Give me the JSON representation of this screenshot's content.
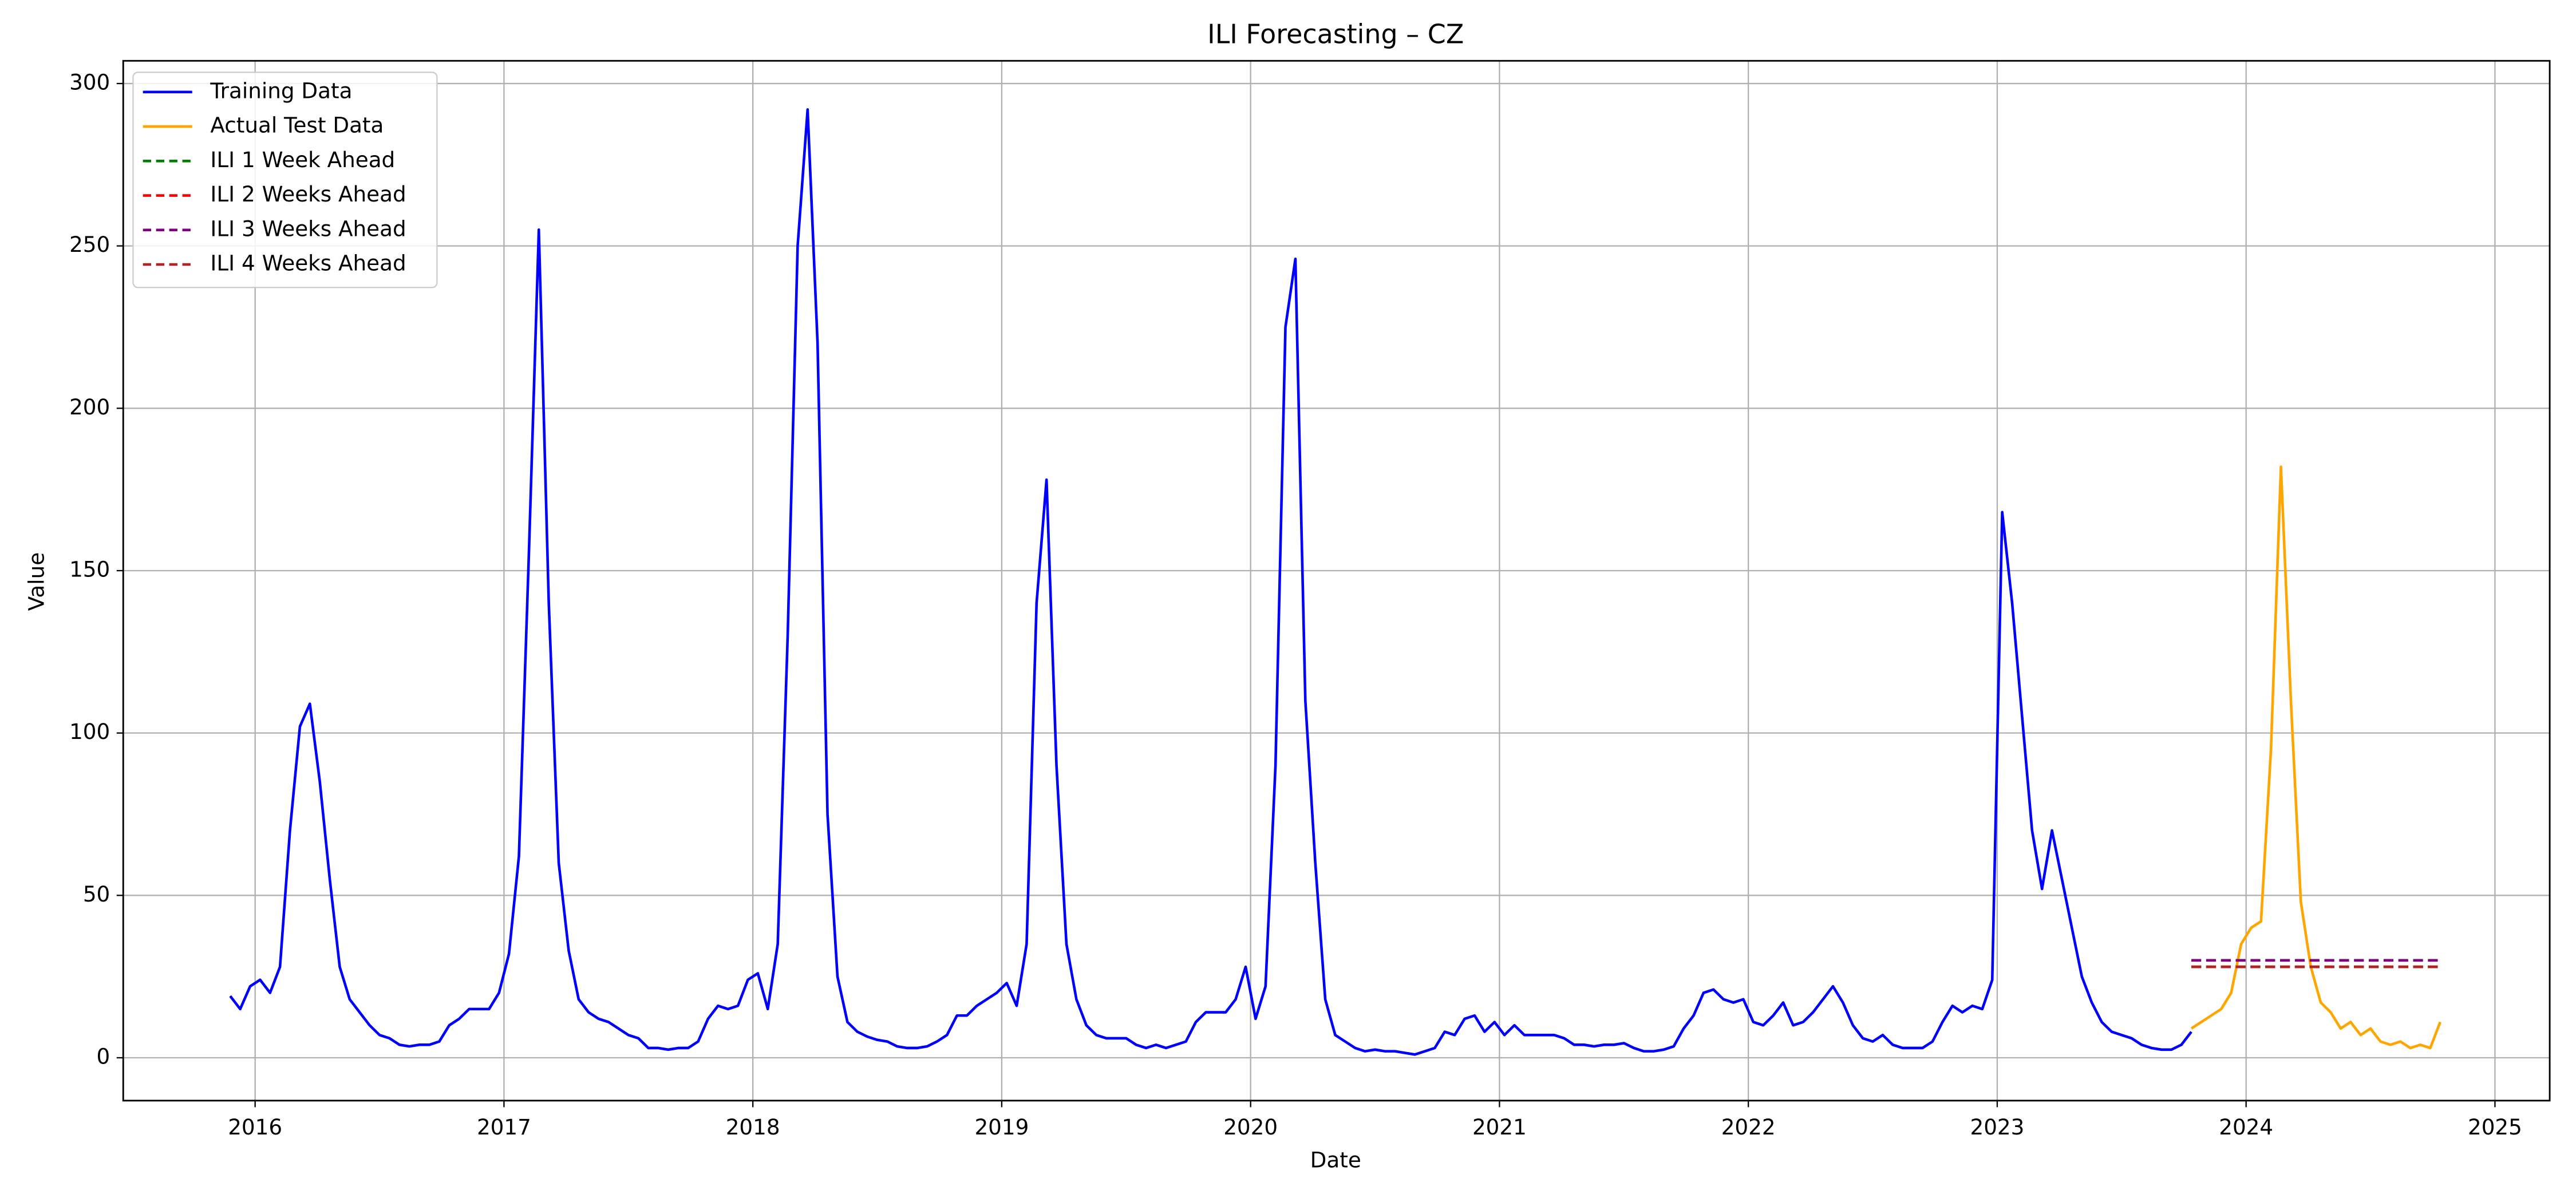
{
  "chart_data": {
    "type": "line",
    "title": "ILI Forecasting – CZ",
    "xlabel": "Date",
    "ylabel": "Value",
    "xlim": [
      2015.47,
      2025.22
    ],
    "ylim": [
      -13.2,
      307
    ],
    "xticks": [
      2016,
      2017,
      2018,
      2019,
      2020,
      2021,
      2022,
      2023,
      2024,
      2025
    ],
    "yticks": [
      0,
      50,
      100,
      150,
      200,
      250,
      300
    ],
    "grid": true,
    "legend": "upper-left",
    "series": [
      {
        "name": "Training Data",
        "color": "#0000ff",
        "dashed": false,
        "x": [
          2015.9,
          2015.94,
          2015.98,
          2016.02,
          2016.06,
          2016.1,
          2016.14,
          2016.18,
          2016.22,
          2016.26,
          2016.3,
          2016.34,
          2016.38,
          2016.42,
          2016.46,
          2016.5,
          2016.54,
          2016.58,
          2016.62,
          2016.66,
          2016.7,
          2016.74,
          2016.78,
          2016.82,
          2016.86,
          2016.9,
          2016.94,
          2016.98,
          2017.02,
          2017.06,
          2017.1,
          2017.14,
          2017.18,
          2017.22,
          2017.26,
          2017.3,
          2017.34,
          2017.38,
          2017.42,
          2017.46,
          2017.5,
          2017.54,
          2017.58,
          2017.62,
          2017.66,
          2017.7,
          2017.74,
          2017.78,
          2017.82,
          2017.86,
          2017.9,
          2017.94,
          2017.98,
          2018.02,
          2018.06,
          2018.1,
          2018.14,
          2018.18,
          2018.22,
          2018.26,
          2018.3,
          2018.34,
          2018.38,
          2018.42,
          2018.46,
          2018.5,
          2018.54,
          2018.58,
          2018.62,
          2018.66,
          2018.7,
          2018.74,
          2018.78,
          2018.82,
          2018.86,
          2018.9,
          2018.94,
          2018.98,
          2019.02,
          2019.06,
          2019.1,
          2019.14,
          2019.18,
          2019.22,
          2019.26,
          2019.3,
          2019.34,
          2019.38,
          2019.42,
          2019.46,
          2019.5,
          2019.54,
          2019.58,
          2019.62,
          2019.66,
          2019.7,
          2019.74,
          2019.78,
          2019.82,
          2019.86,
          2019.9,
          2019.94,
          2019.98,
          2020.02,
          2020.06,
          2020.1,
          2020.14,
          2020.18,
          2020.22,
          2020.26,
          2020.3,
          2020.34,
          2020.38,
          2020.42,
          2020.46,
          2020.5,
          2020.54,
          2020.58,
          2020.62,
          2020.66,
          2020.7,
          2020.74,
          2020.78,
          2020.82,
          2020.86,
          2020.9,
          2020.94,
          2020.98,
          2021.02,
          2021.06,
          2021.1,
          2021.14,
          2021.18,
          2021.22,
          2021.26,
          2021.3,
          2021.34,
          2021.38,
          2021.42,
          2021.46,
          2021.5,
          2021.54,
          2021.58,
          2021.62,
          2021.66,
          2021.7,
          2021.74,
          2021.78,
          2021.82,
          2021.86,
          2021.9,
          2021.94,
          2021.98,
          2022.02,
          2022.06,
          2022.1,
          2022.14,
          2022.18,
          2022.22,
          2022.26,
          2022.3,
          2022.34,
          2022.38,
          2022.42,
          2022.46,
          2022.5,
          2022.54,
          2022.58,
          2022.62,
          2022.66,
          2022.7,
          2022.74,
          2022.78,
          2022.82,
          2022.86,
          2022.9,
          2022.94,
          2022.98,
          2023.02,
          2023.06,
          2023.1,
          2023.14,
          2023.18,
          2023.22,
          2023.26,
          2023.3,
          2023.34,
          2023.38,
          2023.42,
          2023.46,
          2023.5,
          2023.54,
          2023.58,
          2023.62,
          2023.66,
          2023.7,
          2023.74,
          2023.78
        ],
        "values": [
          19,
          15,
          22,
          24,
          20,
          28,
          70,
          102,
          109,
          85,
          55,
          28,
          18,
          14,
          10,
          7,
          6,
          4,
          3.5,
          4,
          4,
          5,
          10,
          12,
          15,
          15,
          15,
          20,
          32,
          62,
          155,
          255,
          140,
          60,
          33,
          18,
          14,
          12,
          11,
          9,
          7,
          6,
          3,
          3,
          2.5,
          3,
          3,
          5,
          12,
          16,
          15,
          16,
          24,
          26,
          15,
          35,
          130,
          250,
          292,
          220,
          75,
          25,
          11,
          8,
          6.5,
          5.5,
          5,
          3.5,
          3,
          3,
          3.5,
          5,
          7,
          13,
          13,
          16,
          18,
          20,
          23,
          16,
          35,
          140,
          178,
          90,
          35,
          18,
          10,
          7,
          6,
          6,
          6,
          4,
          3,
          4,
          3,
          4,
          5,
          11,
          14,
          14,
          14,
          18,
          28,
          12,
          22,
          90,
          225,
          246,
          110,
          60,
          18,
          7,
          5,
          3,
          2,
          2.5,
          2,
          2,
          1.5,
          1,
          2,
          3,
          8,
          7,
          12,
          13,
          8,
          11,
          7,
          10,
          7,
          7,
          7,
          7,
          6,
          4,
          4,
          3.5,
          4,
          4,
          4.5,
          3,
          2,
          2,
          2.5,
          3.5,
          9,
          13,
          20,
          21,
          18,
          17,
          18,
          11,
          10,
          13,
          17,
          10,
          11,
          14,
          18,
          22,
          17,
          10,
          6,
          5,
          7,
          4,
          3,
          3,
          3,
          5,
          11,
          16,
          14,
          16,
          15,
          24,
          168,
          140,
          105,
          70,
          52,
          70,
          55,
          40,
          25,
          17,
          11,
          8,
          7,
          6,
          4,
          3,
          2.5,
          2.5,
          4,
          8
        ]
      },
      {
        "name": "Actual Test Data",
        "color": "#ffa500",
        "dashed": false,
        "x": [
          2023.78,
          2023.82,
          2023.86,
          2023.9,
          2023.94,
          2023.98,
          2024.02,
          2024.06,
          2024.1,
          2024.14,
          2024.18,
          2024.22,
          2024.26,
          2024.3,
          2024.34,
          2024.38,
          2024.42,
          2024.46,
          2024.5,
          2024.54,
          2024.58,
          2024.62,
          2024.66,
          2024.7,
          2024.74,
          2024.78
        ],
        "values": [
          9,
          11,
          13,
          15,
          20,
          35,
          40,
          42,
          95,
          182,
          110,
          48,
          28,
          17,
          14,
          9,
          11,
          7,
          9,
          5,
          4,
          5,
          3,
          4,
          3,
          11
        ]
      },
      {
        "name": "ILI 1 Week Ahead",
        "color": "#008000",
        "dashed": true,
        "x": [
          2023.78,
          2024.78
        ],
        "values": [
          28,
          28
        ]
      },
      {
        "name": "ILI 2 Weeks Ahead",
        "color": "#ff0000",
        "dashed": true,
        "x": [
          2023.78,
          2024.78
        ],
        "values": [
          28,
          28
        ]
      },
      {
        "name": "ILI 3 Weeks Ahead",
        "color": "#800080",
        "dashed": true,
        "x": [
          2023.78,
          2024.78
        ],
        "values": [
          30,
          30
        ]
      },
      {
        "name": "ILI 4 Weeks Ahead",
        "color": "#b22222",
        "dashed": true,
        "x": [
          2023.78,
          2024.78
        ],
        "values": [
          28,
          28
        ]
      }
    ]
  }
}
